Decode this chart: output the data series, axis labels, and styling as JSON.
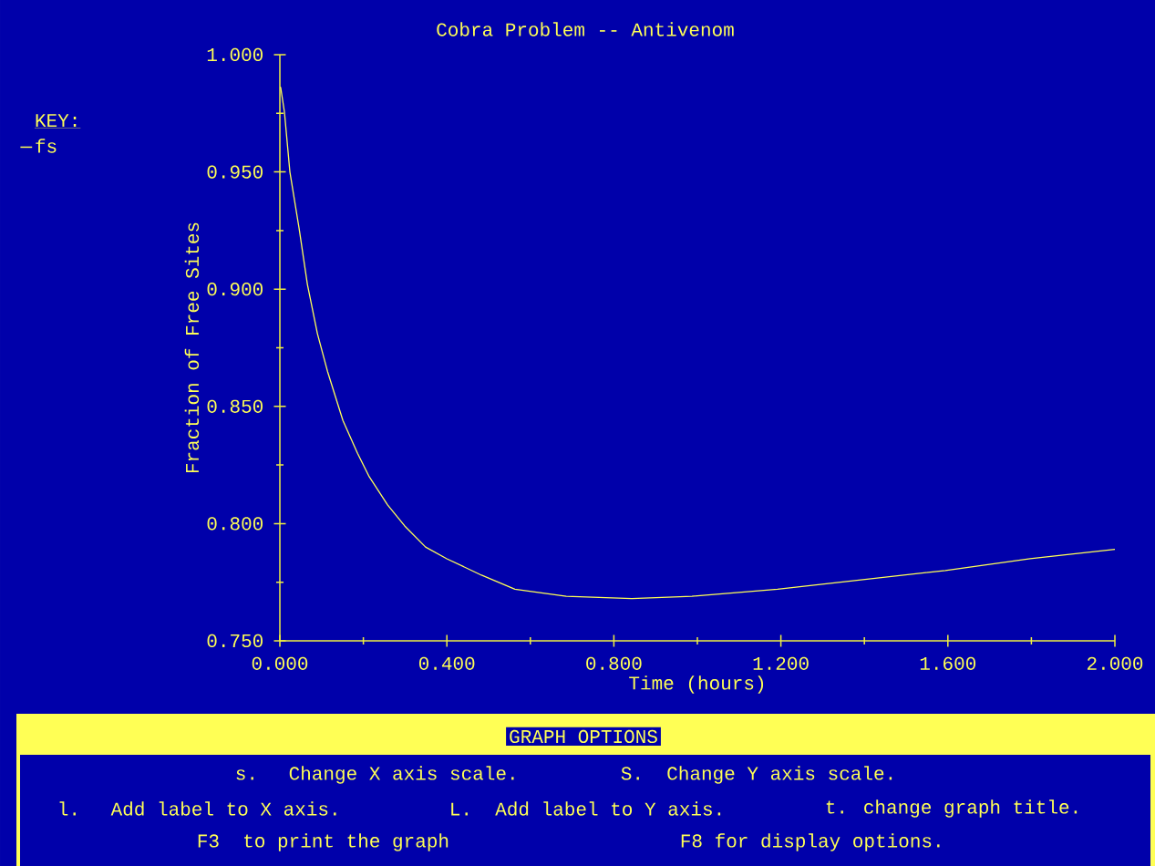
{
  "chart_data": {
    "type": "line",
    "title": "Cobra Problem -- Antivenom",
    "xlabel": "Time (hours)",
    "ylabel": "Fraction of Free Sites",
    "legend_title": "KEY:",
    "legend": "top left",
    "marker": "none",
    "line_style": "solid",
    "grid": false,
    "xlim": [
      0,
      2
    ],
    "ylim": [
      0.75,
      1.0
    ],
    "xticks": [
      {
        "value": 0,
        "label": "0.000"
      },
      {
        "value": 0.2,
        "label": null
      },
      {
        "value": 0.4,
        "label": "0.400"
      },
      {
        "value": 0.6,
        "label": null
      },
      {
        "value": 0.8,
        "label": "0.800"
      },
      {
        "value": 1.0,
        "label": null
      },
      {
        "value": 1.2,
        "label": "1.200"
      },
      {
        "value": 1.4,
        "label": null
      },
      {
        "value": 1.6,
        "label": "1.600"
      },
      {
        "value": 1.8,
        "label": null
      },
      {
        "value": 2.0,
        "label": "2.000"
      }
    ],
    "yticks": [
      {
        "value": 0.75,
        "label": "0.750"
      },
      {
        "value": 0.775,
        "label": null
      },
      {
        "value": 0.8,
        "label": "0.800"
      },
      {
        "value": 0.825,
        "label": null
      },
      {
        "value": 0.85,
        "label": "0.850"
      },
      {
        "value": 0.875,
        "label": null
      },
      {
        "value": 0.9,
        "label": "0.900"
      },
      {
        "value": 0.925,
        "label": null
      },
      {
        "value": 0.95,
        "label": "0.950"
      },
      {
        "value": 0.975,
        "label": null
      },
      {
        "value": 1.0,
        "label": "1.000"
      }
    ],
    "series": [
      {
        "name": "fs",
        "color": "#ffff55",
        "x": [
          0,
          0.002,
          0.011,
          0.024,
          0.046,
          0.066,
          0.09,
          0.114,
          0.151,
          0.186,
          0.214,
          0.258,
          0.299,
          0.349,
          0.4,
          0.483,
          0.563,
          0.686,
          0.843,
          0.987,
          1.192,
          1.393,
          1.594,
          1.797,
          2.0
        ],
        "values": [
          0.986,
          0.986,
          0.9755,
          0.95,
          0.926,
          0.902,
          0.881,
          0.865,
          0.844,
          0.83,
          0.82,
          0.808,
          0.799,
          0.79,
          0.785,
          0.778,
          0.772,
          0.769,
          0.768,
          0.769,
          0.772,
          0.776,
          0.78,
          0.785,
          0.789
        ]
      }
    ],
    "annotations": [
      "GRAPH OPTIONS",
      "s.  Change X axis scale.",
      "S.  Change Y axis scale.",
      "l.  Add label to X axis.",
      "L.  Add label to Y axis.",
      "t. change graph title.",
      "F3  to print the graph",
      "F8 for display options."
    ]
  }
}
